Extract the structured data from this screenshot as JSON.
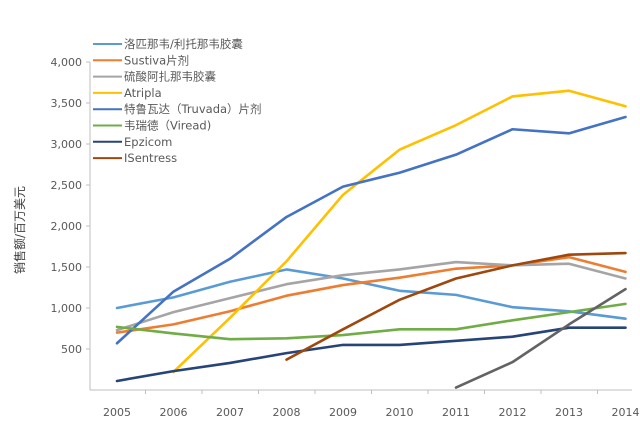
{
  "chart_data": {
    "type": "line",
    "title": "",
    "xlabel": "",
    "ylabel": "销售额/百万美元",
    "ylim": [
      0,
      4000
    ],
    "yticks": [
      "500",
      "1,000",
      "1,500",
      "2,000",
      "2,500",
      "3,000",
      "3,500",
      "4,000"
    ],
    "ytick_values": [
      500,
      1000,
      1500,
      2000,
      2500,
      3000,
      3500,
      4000
    ],
    "categories": [
      "2005",
      "2006",
      "2007",
      "2008",
      "2009",
      "2010",
      "2011",
      "2012",
      "2013",
      "2014"
    ],
    "legend_position": "top-left",
    "grid": false,
    "series": [
      {
        "name": "洛匹那韦/利托那韦胶囊",
        "color": "#5b9bd5",
        "values": [
          1000,
          1130,
          1320,
          1470,
          1360,
          1210,
          1160,
          1010,
          960,
          870
        ]
      },
      {
        "name": "Sustiva片剂",
        "color": "#ed7d31",
        "values": [
          700,
          800,
          960,
          1150,
          1280,
          1370,
          1480,
          1520,
          1620,
          1440
        ]
      },
      {
        "name": "硫酸阿扎那韦胶囊",
        "color": "#a5a5a5",
        "values": [
          730,
          950,
          1120,
          1290,
          1400,
          1470,
          1560,
          1520,
          1540,
          1360
        ]
      },
      {
        "name": "Atripla",
        "color": "#ffc000",
        "values": [
          null,
          220,
          880,
          1570,
          2380,
          2930,
          3230,
          3580,
          3650,
          3460
        ]
      },
      {
        "name": "特鲁瓦达（Truvada）片剂",
        "color": "#4472c4",
        "values": [
          570,
          1200,
          1600,
          2110,
          2480,
          2650,
          2870,
          3180,
          3130,
          3330
        ]
      },
      {
        "name": "韦瑞德（Viread)",
        "color": "#70ad47",
        "values": [
          770,
          690,
          620,
          630,
          670,
          740,
          740,
          850,
          950,
          1050
        ]
      },
      {
        "name": "Epzicom",
        "color": "#264478",
        "values": [
          110,
          230,
          330,
          450,
          550,
          550,
          600,
          650,
          760,
          760
        ]
      },
      {
        "name": "ISentress",
        "color": "#9e480e",
        "values": [
          null,
          null,
          null,
          370,
          740,
          1100,
          1360,
          1520,
          1650,
          1670
        ]
      },
      {
        "name": "",
        "color": "#636363",
        "values": [
          null,
          null,
          null,
          null,
          null,
          null,
          30,
          340,
          800,
          1230
        ]
      }
    ]
  }
}
